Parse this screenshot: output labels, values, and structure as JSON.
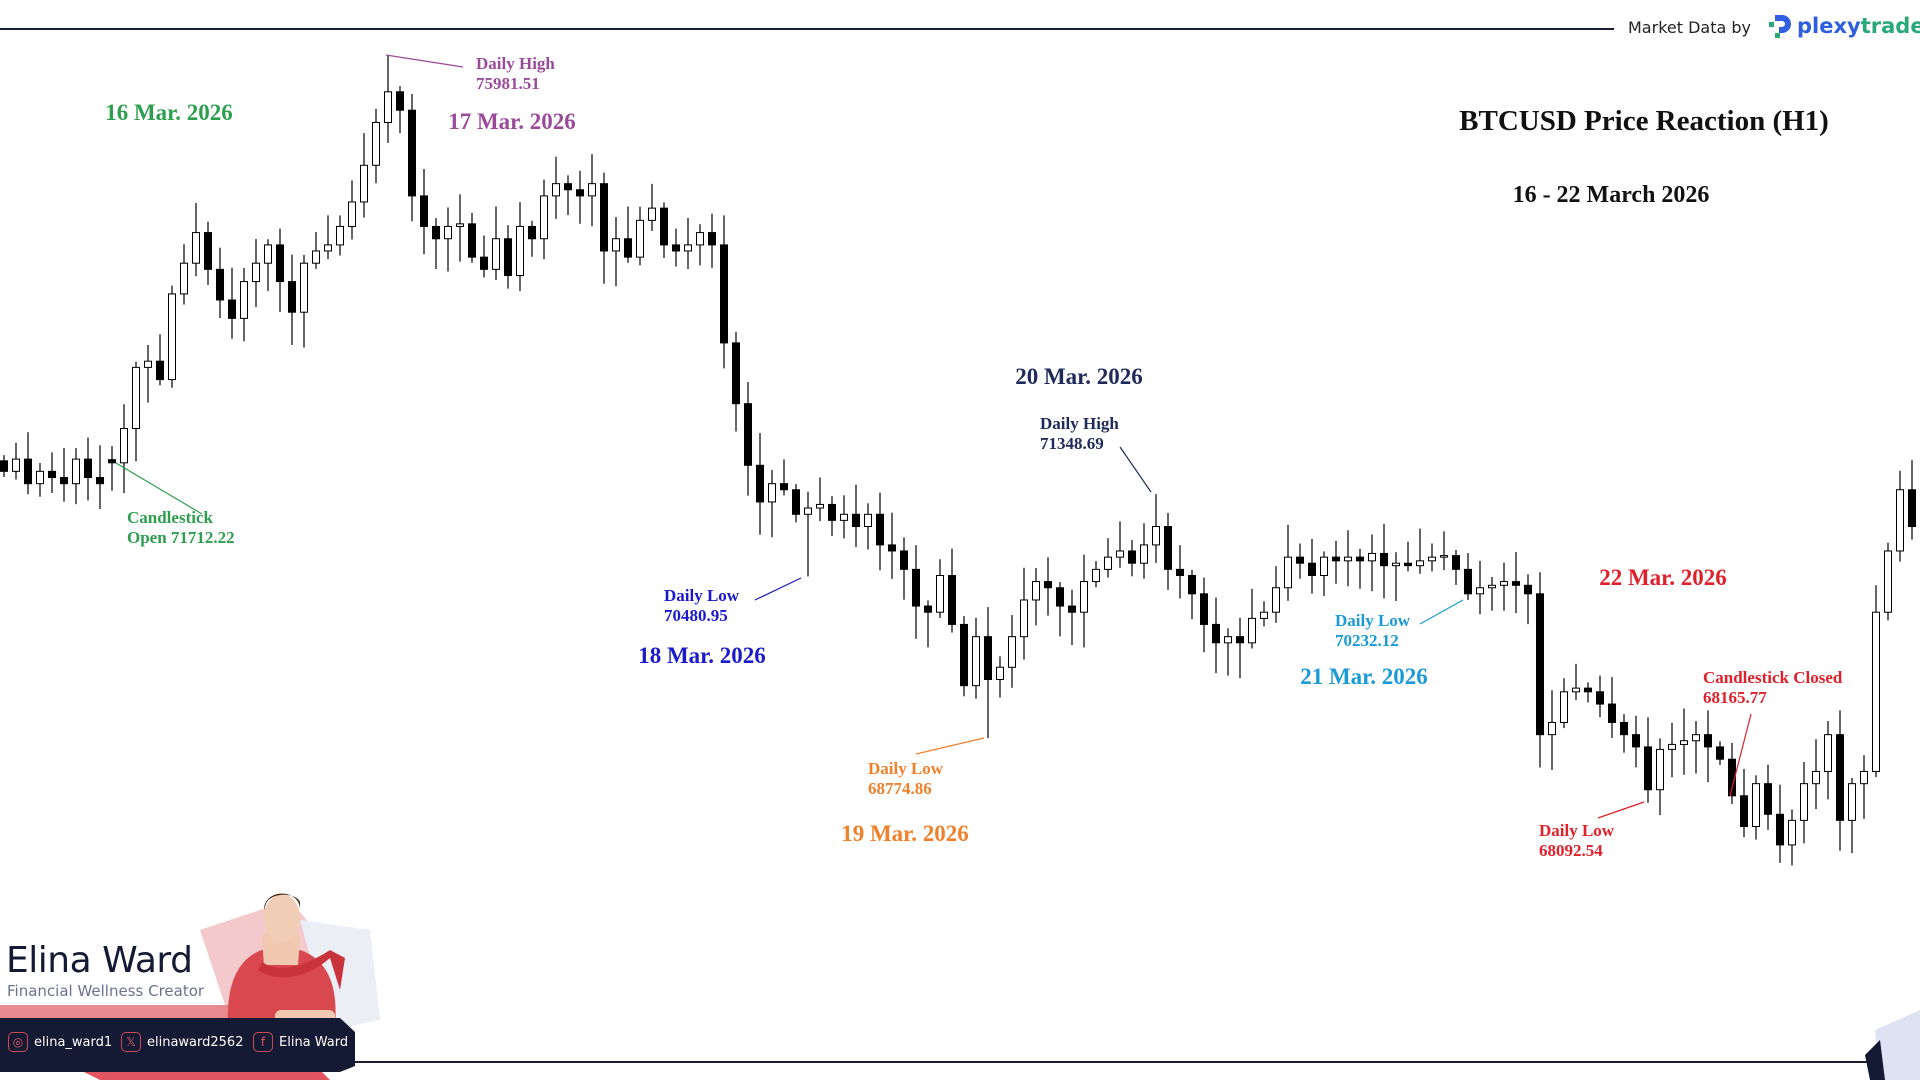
{
  "header": {
    "market_data_label": "Market Data by",
    "brand_name_part1": "plexy",
    "brand_name_part2": "trade"
  },
  "chart_data": {
    "type": "candlestick",
    "title": "BTCUSD Price Reaction (H1)",
    "subtitle": "16 - 22 March 2026",
    "timeframe": "H1",
    "grid": false,
    "colors": {
      "up": "#ffffff",
      "down": "#000000",
      "outline": "#000000"
    },
    "first_open": 71700,
    "closes": [
      71589,
      71718,
      71459,
      71589,
      71524,
      71459,
      71718,
      71524,
      71459,
      71679,
      72041,
      72686,
      72751,
      72557,
      73461,
      73785,
      74108,
      73720,
      73397,
      73203,
      73591,
      73785,
      73978,
      73591,
      73268,
      73785,
      73914,
      73978,
      74173,
      74431,
      74818,
      75270,
      75593,
      75399,
      74495,
      74173,
      74043,
      74173,
      74200,
      73849,
      73720,
      74043,
      73655,
      74173,
      74043,
      74495,
      74624,
      74560,
      74495,
      74624,
      73914,
      74043,
      73849,
      74237,
      74366,
      73978,
      73914,
      73978,
      74108,
      73978,
      72944,
      72303,
      71653,
      71266,
      71459,
      71395,
      71136,
      71202,
      71240,
      71072,
      71136,
      71007,
      71136,
      70813,
      70749,
      70555,
      70168,
      70103,
      70490,
      69974,
      69328,
      69845,
      69393,
      69522,
      69845,
      70232,
      70426,
      70361,
      70168,
      70103,
      70426,
      70555,
      70684,
      70749,
      70620,
      70813,
      71007,
      70555,
      70490,
      70297,
      69974,
      69780,
      69845,
      69780,
      70038,
      70103,
      70361,
      70684,
      70620,
      70490,
      70684,
      70645,
      70684,
      70645,
      70723,
      70594,
      70620,
      70594,
      70645,
      70684,
      70700,
      70555,
      70297,
      70361,
      70387,
      70426,
      70387,
      70297,
      68811,
      68940,
      69263,
      69302,
      69263,
      69134,
      68940,
      68811,
      68682,
      68230,
      68656,
      68708,
      68747,
      68811,
      68682,
      68552,
      68166,
      67842,
      68294,
      67971,
      67648,
      67907,
      68294,
      68423,
      68811,
      67907,
      68294,
      68423,
      70103,
      70749,
      71395,
      71007,
      70620
    ],
    "extremes": [
      {
        "candle": 9,
        "open": 71712.22
      },
      {
        "candle": 32,
        "high": 75981.51
      },
      {
        "candle": 67,
        "low": 70480.95
      },
      {
        "candle": 82,
        "low": 68774.86
      },
      {
        "candle": 96,
        "high": 71348.69
      },
      {
        "candle": 122,
        "low": 70232.12
      },
      {
        "candle": 137,
        "low": 68092.54
      },
      {
        "candle": 144,
        "close": 68165.77
      }
    ],
    "day_labels": [
      {
        "text": "16 Mar. 2026",
        "color": "#2e9e4f"
      },
      {
        "text": "17 Mar. 2026",
        "color": "#9b4a9b"
      },
      {
        "text": "18 Mar. 2026",
        "color": "#1a1acc"
      },
      {
        "text": "19 Mar. 2026",
        "color": "#f0802a"
      },
      {
        "text": "20 Mar. 2026",
        "color": "#1e2a5a"
      },
      {
        "text": "21 Mar. 2026",
        "color": "#1a9ad6"
      },
      {
        "text": "22 Mar. 2026",
        "color": "#e0202a"
      }
    ],
    "annotations": [
      {
        "line1": "Candlestick",
        "line2": "Open 71712.22",
        "color": "#2e9e4f"
      },
      {
        "line1": "Daily High",
        "line2": "75981.51",
        "color": "#9b4a9b"
      },
      {
        "line1": "Daily Low",
        "line2": "70480.95",
        "color": "#1a1acc"
      },
      {
        "line1": "Daily Low",
        "line2": "68774.86",
        "color": "#f0802a"
      },
      {
        "line1": "Daily High",
        "line2": "71348.69",
        "color": "#1e2a5a"
      },
      {
        "line1": "Daily Low",
        "line2": "70232.12",
        "color": "#1a9ad6"
      },
      {
        "line1": "Daily Low",
        "line2": "68092.54",
        "color": "#e0202a"
      },
      {
        "line1": "Candlestick Closed",
        "line2": "68165.77",
        "color": "#e0202a"
      }
    ]
  },
  "creator": {
    "name": "Elina Ward",
    "role": "Financial Wellness Creator",
    "socials": [
      {
        "icon": "instagram-icon",
        "handle": "elina_ward1"
      },
      {
        "icon": "x-icon",
        "handle": "elinaward2562"
      },
      {
        "icon": "facebook-icon",
        "handle": "Elina Ward"
      }
    ]
  }
}
